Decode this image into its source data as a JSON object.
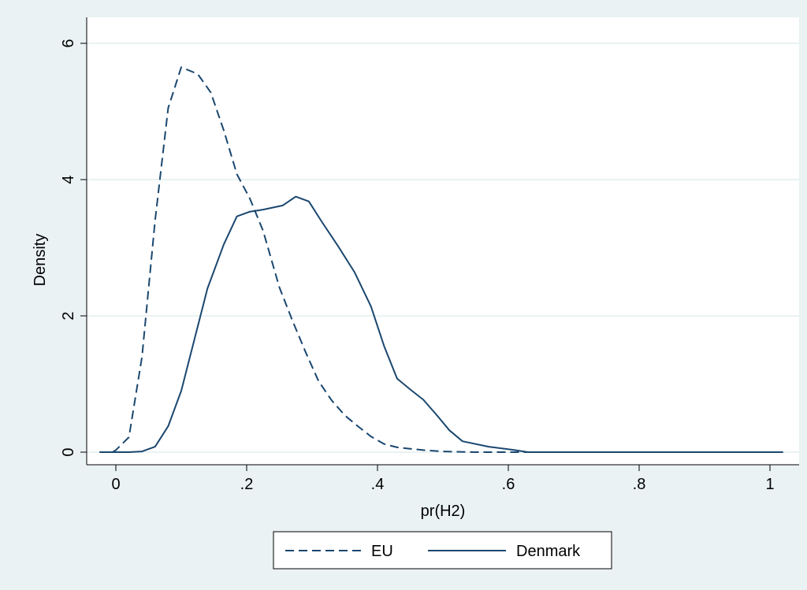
{
  "chart_data": {
    "type": "line",
    "xlabel": "pr(H2)",
    "ylabel": "Density",
    "xlim": [
      -0.025,
      1.02
    ],
    "ylim": [
      0,
      6.2
    ],
    "x_ticks": [
      0,
      0.2,
      0.4,
      0.6,
      0.8,
      1
    ],
    "x_tick_labels": [
      "0",
      ".2",
      ".4",
      ".6",
      ".8",
      "1"
    ],
    "y_ticks": [
      0,
      2,
      4,
      6
    ],
    "y_tick_labels": [
      "0",
      "2",
      "4",
      "6"
    ],
    "grid": true,
    "legend_position": "bottom",
    "colors": {
      "outer_background": "#eaf2f3",
      "plot_background": "#ffffff",
      "gridline": "#eaf2f3",
      "series_line": "#1a476f"
    },
    "series": [
      {
        "name": "EU",
        "dash": "dashed",
        "x": [
          -0.025,
          -0.005,
          0.0,
          0.02,
          0.04,
          0.06,
          0.08,
          0.1,
          0.125,
          0.145,
          0.165,
          0.185,
          0.205,
          0.225,
          0.25,
          0.27,
          0.29,
          0.31,
          0.33,
          0.35,
          0.37,
          0.39,
          0.41,
          0.43,
          0.45,
          0.47,
          0.5,
          0.55,
          0.6,
          0.65,
          0.7,
          0.8,
          0.9,
          1.02
        ],
        "y": [
          0.0,
          0.0,
          0.03,
          0.22,
          1.4,
          3.4,
          5.05,
          5.65,
          5.55,
          5.28,
          4.72,
          4.08,
          3.72,
          3.25,
          2.42,
          1.93,
          1.47,
          1.04,
          0.76,
          0.54,
          0.38,
          0.23,
          0.12,
          0.07,
          0.05,
          0.03,
          0.01,
          0.0,
          0.0,
          0.0,
          0.0,
          0.0,
          0.0,
          0.0
        ]
      },
      {
        "name": "Denmark",
        "dash": "solid",
        "x": [
          -0.025,
          0.0,
          0.02,
          0.04,
          0.06,
          0.08,
          0.1,
          0.12,
          0.14,
          0.165,
          0.185,
          0.205,
          0.225,
          0.255,
          0.275,
          0.295,
          0.315,
          0.34,
          0.365,
          0.39,
          0.41,
          0.43,
          0.45,
          0.47,
          0.49,
          0.51,
          0.53,
          0.57,
          0.61,
          0.63,
          0.7,
          0.8,
          0.9,
          1.02
        ],
        "y": [
          0.0,
          0.0,
          0.0,
          0.01,
          0.08,
          0.38,
          0.9,
          1.65,
          2.4,
          3.05,
          3.46,
          3.53,
          3.56,
          3.62,
          3.75,
          3.68,
          3.38,
          3.02,
          2.64,
          2.14,
          1.56,
          1.08,
          0.92,
          0.77,
          0.55,
          0.32,
          0.16,
          0.08,
          0.03,
          0.0,
          0.0,
          0.0,
          0.0,
          0.0
        ]
      }
    ]
  }
}
